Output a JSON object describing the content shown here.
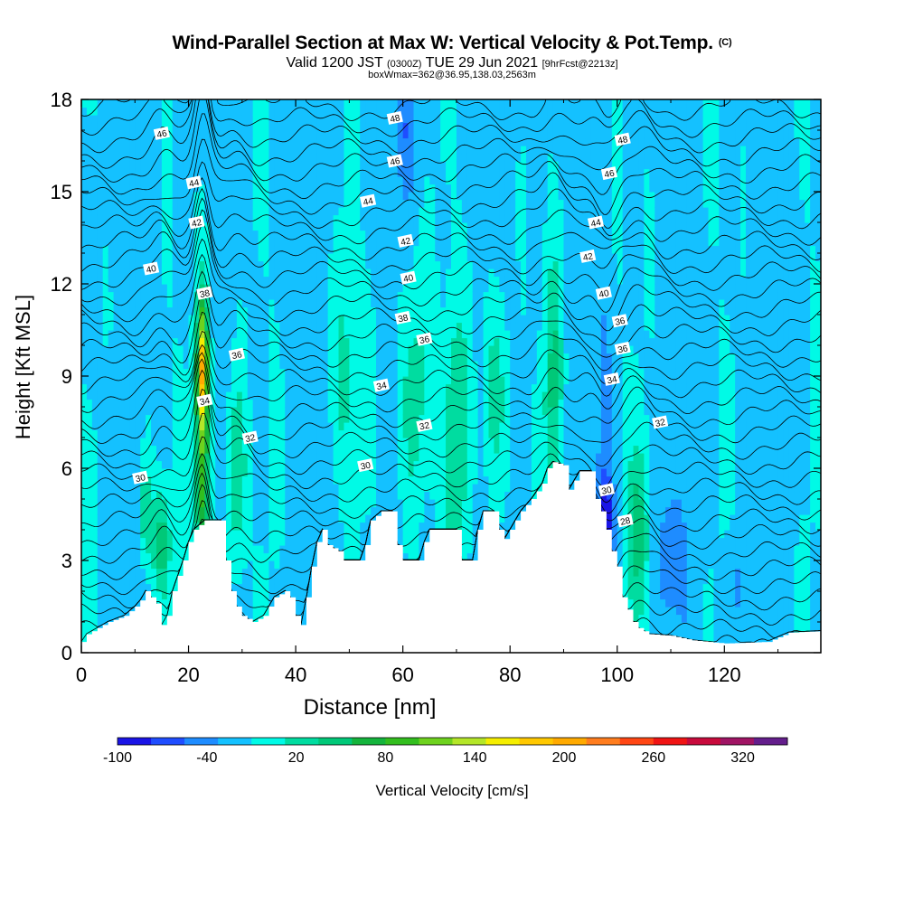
{
  "header": {
    "title": "Wind-Parallel Section at Max W: Vertical Velocity & Pot.Temp.",
    "title_mark": "(C)",
    "valid_prefix": "Valid 1200 JST",
    "valid_utc": "(0300Z)",
    "valid_date": "TUE 29 Jun 2021",
    "forecast_tag": "[9hrFcst@2213z]",
    "box_info": "boxWmax=362@36.95,138.03,2563m"
  },
  "chart_data": {
    "type": "heatmap",
    "xlabel": "Distance [nm]",
    "ylabel": "Height [Kft MSL]",
    "xlim": [
      0,
      138
    ],
    "ylim": [
      0,
      18
    ],
    "x_ticks": [
      0,
      20,
      40,
      60,
      80,
      100,
      120
    ],
    "y_ticks": [
      0,
      3,
      6,
      9,
      12,
      15,
      18
    ],
    "colorbar": {
      "label": "Vertical Velocity [cm/s]",
      "tick_labels": [
        "-100",
        "-40",
        "20",
        "80",
        "140",
        "200",
        "260",
        "320"
      ],
      "tick_values": [
        -100,
        -40,
        20,
        80,
        140,
        200,
        260,
        320
      ],
      "min": -100,
      "max": 350,
      "step": 30,
      "colors": [
        "#1a14e6",
        "#1f4dff",
        "#1e8cff",
        "#14c1ff",
        "#00fae6",
        "#00dca0",
        "#00c878",
        "#14b43c",
        "#32be1e",
        "#6ed21e",
        "#b4e628",
        "#f5ee00",
        "#ffc800",
        "#ffaa00",
        "#ff7d1e",
        "#ff4614",
        "#f01414",
        "#c80a3c",
        "#a01464",
        "#641e8c"
      ]
    },
    "background_class_value": 0,
    "terrain": [
      [
        0,
        0.35
      ],
      [
        1,
        0.6
      ],
      [
        3,
        0.8
      ],
      [
        5,
        1.0
      ],
      [
        8,
        1.2
      ],
      [
        10,
        1.5
      ],
      [
        11,
        1.7
      ],
      [
        12,
        2.0
      ],
      [
        13,
        1.8
      ],
      [
        14,
        1.6
      ],
      [
        15,
        0.9
      ],
      [
        16,
        1.2
      ],
      [
        17,
        2.0
      ],
      [
        18,
        2.5
      ],
      [
        19,
        3.0
      ],
      [
        20,
        3.6
      ],
      [
        21,
        4.0
      ],
      [
        23,
        4.3
      ],
      [
        26,
        4.3
      ],
      [
        27,
        3.0
      ],
      [
        28,
        2.0
      ],
      [
        29,
        1.5
      ],
      [
        30,
        1.2
      ],
      [
        32,
        1.0
      ],
      [
        34,
        1.2
      ],
      [
        36,
        1.8
      ],
      [
        38,
        2.0
      ],
      [
        39,
        1.8
      ],
      [
        40,
        1.2
      ],
      [
        41,
        0.9
      ],
      [
        42,
        1.8
      ],
      [
        43,
        2.8
      ],
      [
        44,
        3.6
      ],
      [
        45,
        4.0
      ],
      [
        46,
        3.5
      ],
      [
        48,
        3.3
      ],
      [
        49,
        3.0
      ],
      [
        52,
        3.0
      ],
      [
        53,
        3.5
      ],
      [
        54,
        4.3
      ],
      [
        56,
        4.6
      ],
      [
        58,
        4.6
      ],
      [
        59,
        3.5
      ],
      [
        60,
        3.0
      ],
      [
        63,
        3.0
      ],
      [
        64,
        3.6
      ],
      [
        65,
        4.0
      ],
      [
        70,
        4.0
      ],
      [
        71,
        3.0
      ],
      [
        73,
        3.0
      ],
      [
        74,
        4.0
      ],
      [
        75,
        4.6
      ],
      [
        77,
        4.6
      ],
      [
        78,
        4.0
      ],
      [
        79,
        3.7
      ],
      [
        81,
        4.3
      ],
      [
        82,
        4.6
      ],
      [
        84,
        5.0
      ],
      [
        86,
        5.5
      ],
      [
        87,
        6.0
      ],
      [
        88,
        6.2
      ],
      [
        90,
        6.1
      ],
      [
        91,
        5.3
      ],
      [
        92,
        5.6
      ],
      [
        93,
        5.9
      ],
      [
        95,
        5.9
      ],
      [
        96,
        5.0
      ],
      [
        97,
        4.6
      ],
      [
        98,
        4.0
      ],
      [
        99,
        3.3
      ],
      [
        100,
        2.8
      ],
      [
        101,
        1.8
      ],
      [
        102,
        1.4
      ],
      [
        103,
        1.0
      ],
      [
        104,
        0.8
      ],
      [
        106,
        0.6
      ],
      [
        110,
        0.55
      ],
      [
        114,
        0.4
      ],
      [
        120,
        0.3
      ],
      [
        128,
        0.35
      ],
      [
        132,
        0.65
      ],
      [
        138,
        0.7
      ]
    ],
    "w_features": [
      {
        "x": 22.6,
        "y": 6.0,
        "sx": 1.0,
        "sy": 3.4,
        "v": 150
      },
      {
        "x": 22.6,
        "y": 9.4,
        "sx": 0.7,
        "sy": 1.3,
        "v": 190
      },
      {
        "x": 15.0,
        "y": 3.6,
        "sx": 1.2,
        "sy": 1.3,
        "v": 85
      },
      {
        "x": 29.0,
        "y": 5.8,
        "sx": 1.3,
        "sy": 2.2,
        "v": 70
      },
      {
        "x": 12.0,
        "y": 4.5,
        "sx": 0.9,
        "sy": 1.2,
        "v": 60
      },
      {
        "x": 104.0,
        "y": 3.8,
        "sx": 1.5,
        "sy": 2.0,
        "v": 75
      },
      {
        "x": 88.0,
        "y": 8.8,
        "sx": 1.2,
        "sy": 3.0,
        "v": 70
      },
      {
        "x": 62.0,
        "y": 8.5,
        "sx": 2.2,
        "sy": 3.0,
        "v": 55
      },
      {
        "x": 70.0,
        "y": 7.0,
        "sx": 1.8,
        "sy": 3.0,
        "v": 60
      },
      {
        "x": 77.0,
        "y": 8.5,
        "sx": 1.6,
        "sy": 2.5,
        "v": 60
      },
      {
        "x": 49.0,
        "y": 9.0,
        "sx": 1.5,
        "sy": 2.5,
        "v": 45
      },
      {
        "x": 98.0,
        "y": 4.2,
        "sx": 1.0,
        "sy": 1.0,
        "v": -90
      },
      {
        "x": 97.5,
        "y": 7.5,
        "sx": 1.0,
        "sy": 3.0,
        "v": -40
      },
      {
        "x": 110.0,
        "y": 3.0,
        "sx": 2.0,
        "sy": 1.8,
        "v": -35
      },
      {
        "x": 60.5,
        "y": 17.0,
        "sx": 1.2,
        "sy": 1.4,
        "v": -40
      },
      {
        "x": 85.0,
        "y": 17.0,
        "sx": 1.0,
        "sy": 1.5,
        "v": -30
      },
      {
        "x": 122.0,
        "y": 2.0,
        "sx": 1.5,
        "sy": 1.2,
        "v": -30
      }
    ],
    "theta_levels": [
      28,
      30,
      32,
      34,
      36,
      38,
      40,
      42,
      44,
      46,
      48
    ],
    "theta_labels": [
      {
        "text": "28",
        "x": 101.5,
        "y": 4.3
      },
      {
        "text": "30",
        "x": 11.0,
        "y": 5.7
      },
      {
        "text": "30",
        "x": 53.0,
        "y": 6.1
      },
      {
        "text": "30",
        "x": 98.0,
        "y": 5.3
      },
      {
        "text": "32",
        "x": 31.5,
        "y": 7.0
      },
      {
        "text": "32",
        "x": 64.0,
        "y": 7.4
      },
      {
        "text": "32",
        "x": 108.0,
        "y": 7.5
      },
      {
        "text": "34",
        "x": 23.0,
        "y": 8.2
      },
      {
        "text": "34",
        "x": 56.0,
        "y": 8.7
      },
      {
        "text": "34",
        "x": 99.0,
        "y": 8.9
      },
      {
        "text": "36",
        "x": 29.0,
        "y": 9.7
      },
      {
        "text": "36",
        "x": 64.0,
        "y": 10.2
      },
      {
        "text": "36",
        "x": 101.0,
        "y": 9.9
      },
      {
        "text": "36",
        "x": 100.5,
        "y": 10.8
      },
      {
        "text": "38",
        "x": 23.0,
        "y": 11.7
      },
      {
        "text": "38",
        "x": 60.0,
        "y": 10.9
      },
      {
        "text": "40",
        "x": 13.0,
        "y": 12.5
      },
      {
        "text": "40",
        "x": 61.0,
        "y": 12.2
      },
      {
        "text": "40",
        "x": 97.5,
        "y": 11.7
      },
      {
        "text": "42",
        "x": 21.5,
        "y": 14.0
      },
      {
        "text": "42",
        "x": 60.5,
        "y": 13.4
      },
      {
        "text": "42",
        "x": 94.5,
        "y": 12.9
      },
      {
        "text": "44",
        "x": 21.0,
        "y": 15.3
      },
      {
        "text": "44",
        "x": 53.5,
        "y": 14.7
      },
      {
        "text": "44",
        "x": 96.0,
        "y": 14.0
      },
      {
        "text": "46",
        "x": 15.0,
        "y": 16.9
      },
      {
        "text": "46",
        "x": 58.5,
        "y": 16.0
      },
      {
        "text": "46",
        "x": 98.5,
        "y": 15.6
      },
      {
        "text": "48",
        "x": 58.5,
        "y": 17.4
      },
      {
        "text": "48",
        "x": 101.0,
        "y": 16.7
      }
    ]
  }
}
